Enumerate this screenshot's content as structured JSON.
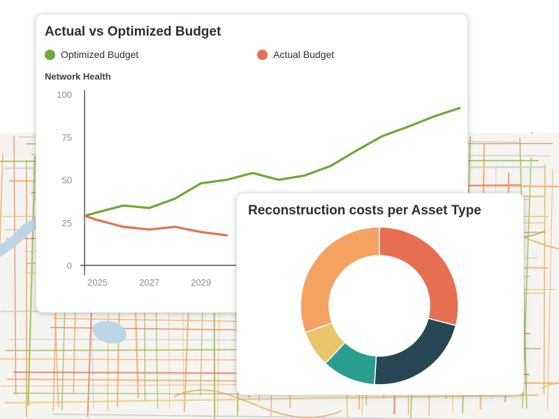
{
  "colors": {
    "optimized": "#6aa935",
    "actual": "#e87150",
    "map_green": "#8fbf4d",
    "map_orange": "#f2a65a",
    "map_red": "#e27a58",
    "map_yellow": "#e9c46a",
    "map_gray": "#c9c9c9"
  },
  "line_card": {
    "title": "Actual vs Optimized Budget",
    "y_label": "Network Health"
  },
  "donut_card": {
    "title": "Reconstruction costs per Asset Type"
  },
  "chart_data": [
    {
      "type": "line",
      "title": "Actual vs Optimized Budget",
      "ylabel": "Network Health",
      "xlabel": "",
      "ylim": [
        0,
        100
      ],
      "yticks": [
        0,
        25,
        50,
        75,
        100
      ],
      "xticks": [
        "2025",
        "2027",
        "2029"
      ],
      "x": [
        2024.5,
        2025,
        2026,
        2027,
        2028,
        2029,
        2030,
        2031,
        2032,
        2033,
        2034,
        2035,
        2036,
        2037,
        2038,
        2039
      ],
      "legend_position": "top",
      "grid": false,
      "series": [
        {
          "name": "Optimized Budget",
          "color": "#6aa935",
          "values": [
            29,
            31,
            35,
            33.5,
            39,
            48,
            50,
            54,
            50,
            52.5,
            58,
            67,
            75.5,
            81,
            87,
            92
          ]
        },
        {
          "name": "Actual Budget",
          "color": "#e87150",
          "values": [
            29,
            26.5,
            22.5,
            21,
            22.5,
            19.5,
            17.5,
            null,
            null,
            null,
            null,
            null,
            null,
            null,
            null,
            null
          ]
        }
      ]
    },
    {
      "type": "pie",
      "title": "Reconstruction costs per Asset Type",
      "donut": true,
      "slices": [
        {
          "value": 29,
          "color": "#e76f51"
        },
        {
          "value": 22,
          "color": "#264653"
        },
        {
          "value": 11,
          "color": "#2a9d8f"
        },
        {
          "value": 7.5,
          "color": "#e9c46a"
        },
        {
          "value": 30.5,
          "color": "#f4a261"
        }
      ]
    }
  ]
}
